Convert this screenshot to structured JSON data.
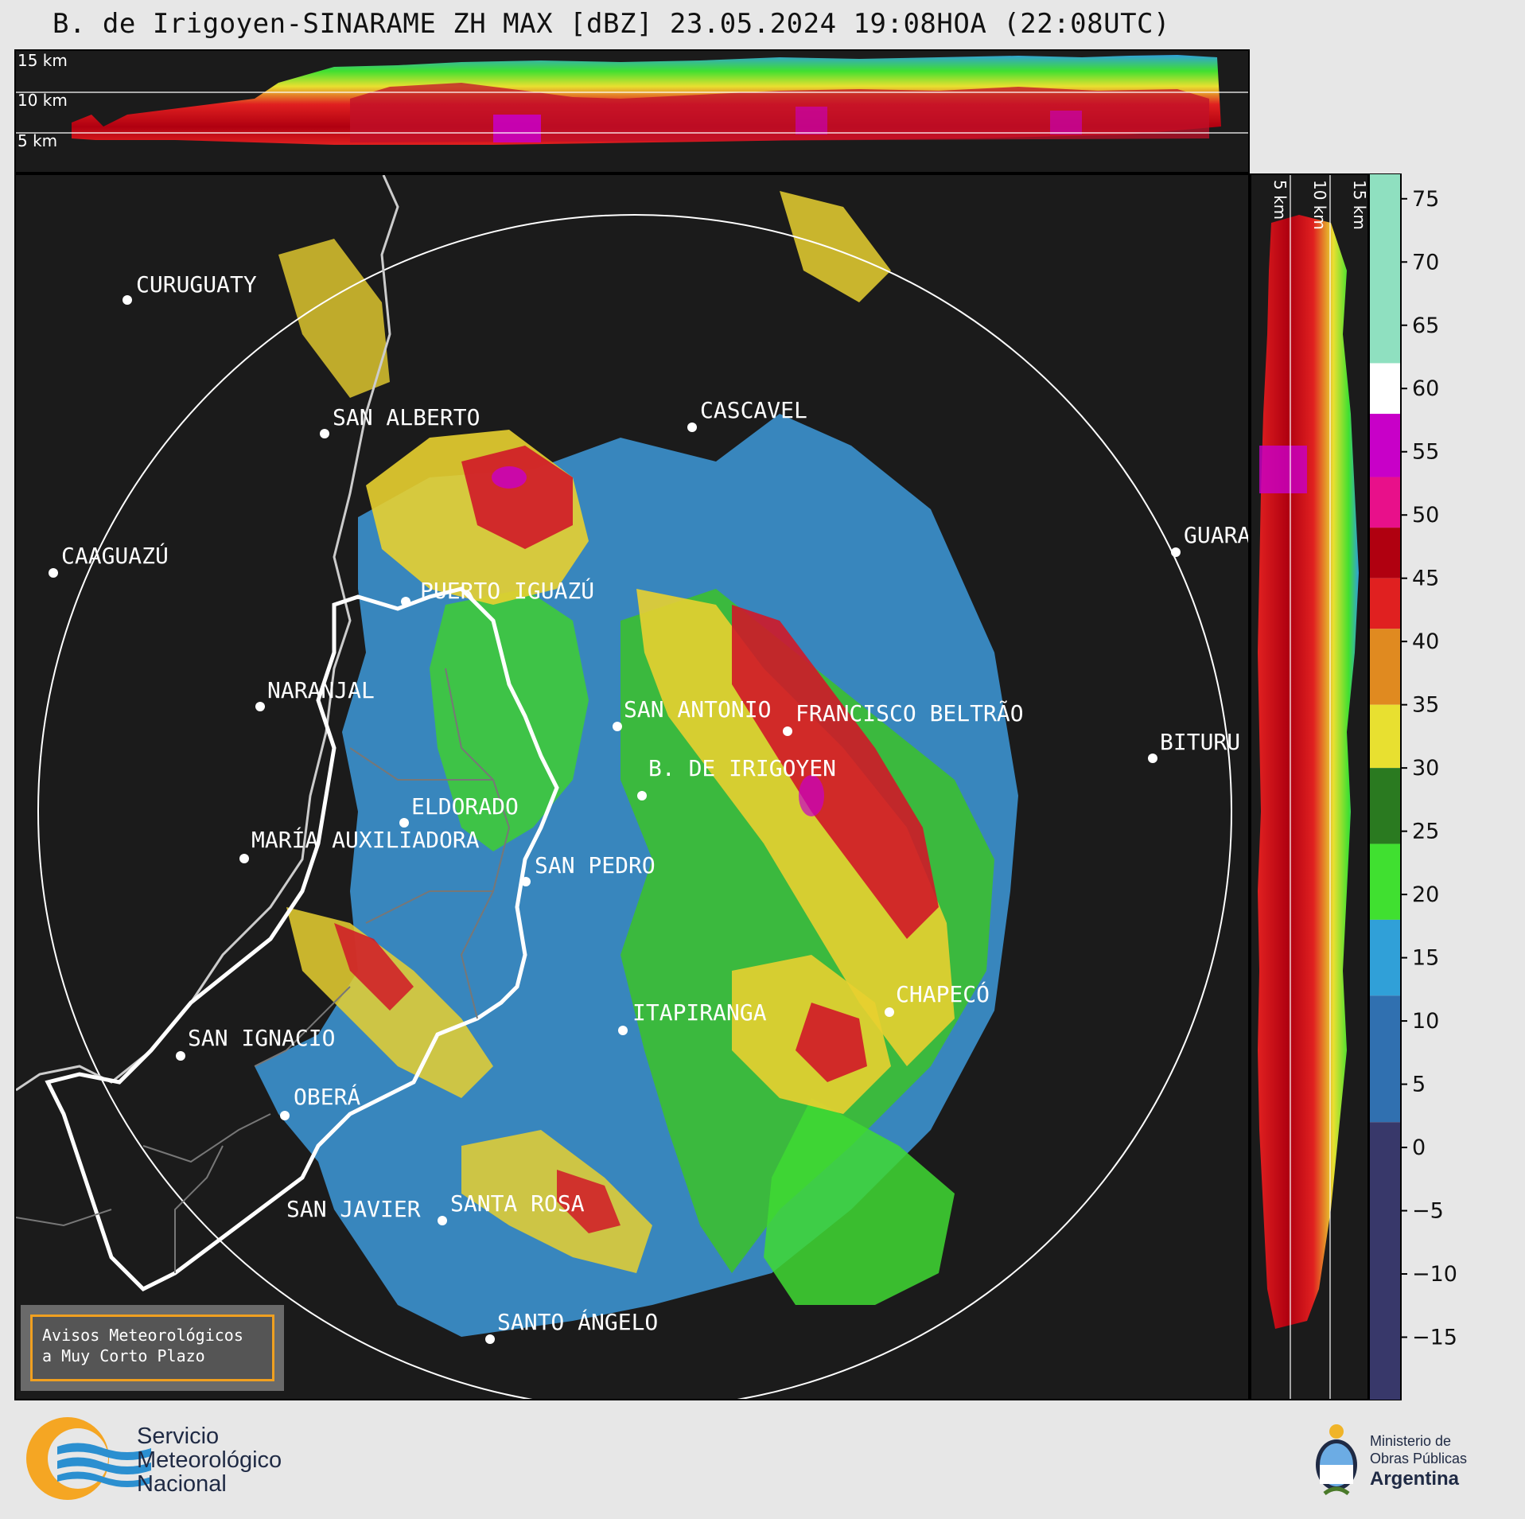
{
  "title": "B. de Irigoyen-SINARAME ZH MAX [dBZ] 23.05.2024 19:08HOA (22:08UTC)",
  "top_panel": {
    "height_labels": [
      "15 km",
      "10 km",
      "5 km"
    ]
  },
  "side_panel": {
    "height_labels": [
      "5 km",
      "10 km",
      "15 km"
    ]
  },
  "colorbar": {
    "unit": "dBZ",
    "ticks": [
      "75",
      "70",
      "65",
      "60",
      "55",
      "50",
      "45",
      "40",
      "35",
      "30",
      "25",
      "20",
      "15",
      "10",
      "5",
      "0",
      "−5",
      "−10",
      "−15"
    ],
    "range": [
      -20,
      77
    ],
    "colors": {
      "extreme": "#8fe0c0",
      "white_band": "#ffffff",
      "magenta": "#c800c8",
      "pink": "#e8108a",
      "dark_red": "#b00010",
      "red": "#e02020",
      "orange": "#e08a20",
      "yellow": "#e8e030",
      "dark_green": "#2a7a20",
      "green": "#40e030",
      "light_blue": "#30a0d8",
      "blue": "#3070b0",
      "navy": "#38386a"
    }
  },
  "cities": [
    {
      "name": "CURUGUATY"
    },
    {
      "name": "SAN ALBERTO"
    },
    {
      "name": "CASCAVEL"
    },
    {
      "name": "CAAGUAZÚ"
    },
    {
      "name": "GUARA"
    },
    {
      "name": "PUERTO IGUAZÚ"
    },
    {
      "name": "NARANJAL"
    },
    {
      "name": "SAN ANTONIO"
    },
    {
      "name": "FRANCISCO BELTRÃO"
    },
    {
      "name": "BITURU"
    },
    {
      "name": "B. DE IRIGOYEN"
    },
    {
      "name": "ELDORADO"
    },
    {
      "name": "MARÍA AUXILIADORA"
    },
    {
      "name": "SAN PEDRO"
    },
    {
      "name": "CHAPECÓ"
    },
    {
      "name": "ITAPIRANGA"
    },
    {
      "name": "SAN IGNACIO"
    },
    {
      "name": "OBERÁ"
    },
    {
      "name": "SAN JAVIER"
    },
    {
      "name": "SANTA ROSA"
    },
    {
      "name": "SANTO ÁNGELO"
    }
  ],
  "notice": {
    "line1": "Avisos Meteorológicos",
    "line2": "a Muy Corto Plazo"
  },
  "footer": {
    "smn_line1": "Servicio",
    "smn_line2": "Meteorológico",
    "smn_line3": "Nacional",
    "ministry_line1": "Ministerio de",
    "ministry_line2": "Obras Públicas",
    "ministry_line3": "Argentina"
  }
}
